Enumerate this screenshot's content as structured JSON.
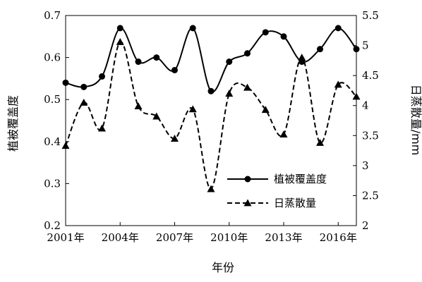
{
  "chart_data": {
    "type": "line",
    "x_tick_labels": [
      "2001年",
      "2004年",
      "2007年",
      "2010年",
      "2013年",
      "2016年"
    ],
    "x_tick_years": [
      2001,
      2004,
      2007,
      2010,
      2013,
      2016
    ],
    "x": [
      2001,
      2002,
      2003,
      2004,
      2005,
      2006,
      2007,
      2008,
      2009,
      2010,
      2011,
      2012,
      2013,
      2014,
      2015,
      2016,
      2017
    ],
    "xlim": [
      2001,
      2017
    ],
    "xlabel": "年份",
    "ylabel_left": "植被覆盖度",
    "ylabel_right": "日蒸散量/mm",
    "ylim_left": [
      0.2,
      0.7
    ],
    "yticks_left": [
      "0.2",
      "0.3",
      "0.4",
      "0.5",
      "0.6",
      "0.7"
    ],
    "ylim_right": [
      2,
      5.5
    ],
    "yticks_right": [
      "2",
      "2.5",
      "3",
      "3.5",
      "4",
      "4.5",
      "5",
      "5.5"
    ],
    "grid": false,
    "legend_position": "lower-right",
    "series": [
      {
        "name": "植被覆盖度",
        "axis": "left",
        "style": "solid",
        "marker": "circle",
        "color": "#000000",
        "values": [
          0.54,
          0.53,
          0.555,
          0.67,
          0.59,
          0.6,
          0.57,
          0.67,
          0.52,
          0.59,
          0.61,
          0.66,
          0.65,
          0.59,
          0.62,
          0.67,
          0.62
        ]
      },
      {
        "name": "日蒸散量",
        "axis": "right",
        "style": "dashed",
        "marker": "triangle",
        "color": "#000000",
        "values": [
          3.33,
          4.05,
          3.62,
          5.06,
          3.99,
          3.82,
          3.45,
          3.94,
          2.61,
          4.2,
          4.3,
          3.93,
          3.52,
          4.8,
          3.38,
          4.35,
          4.15
        ]
      }
    ]
  }
}
